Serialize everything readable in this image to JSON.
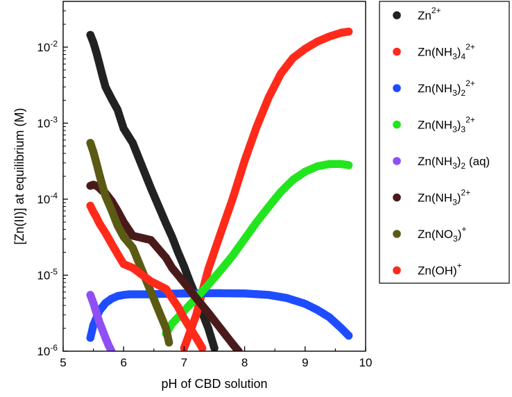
{
  "chart_data": {
    "type": "scatter",
    "title": "",
    "xlabel": "pH of CBD solution",
    "ylabel": "[Zn(II)] at equilibrium (M)",
    "xlim": [
      5,
      10
    ],
    "ylim": [
      1e-06,
      0.04
    ],
    "yscale": "log",
    "x_ticks": [
      "5",
      "6",
      "7",
      "8",
      "9",
      "10"
    ],
    "y_ticks": [
      "10-6",
      "10-5",
      "10-4",
      "10-3",
      "10-2"
    ],
    "legend_position": "right",
    "series": [
      {
        "name": "Zn2+",
        "label_base": "Zn",
        "label_sup": "2+",
        "color": "#222222",
        "points": [
          [
            5.45,
            0.0145
          ],
          [
            5.5,
            0.0115
          ],
          [
            5.55,
            0.0085
          ],
          [
            5.6,
            0.006
          ],
          [
            5.65,
            0.0042
          ],
          [
            5.7,
            0.003
          ],
          [
            5.8,
            0.0021
          ],
          [
            5.9,
            0.0015
          ],
          [
            6.0,
            0.00085
          ],
          [
            6.15,
            0.00055
          ],
          [
            6.45,
            0.00014
          ],
          [
            6.7,
            4.8e-05
          ],
          [
            6.8,
            3.2e-05
          ],
          [
            6.9,
            2e-05
          ],
          [
            7.0,
            1.3e-05
          ],
          [
            7.1,
            8e-06
          ],
          [
            7.2,
            5.2e-06
          ],
          [
            7.3,
            3.2e-06
          ],
          [
            7.4,
            2e-06
          ],
          [
            7.5,
            1.1e-06
          ]
        ]
      },
      {
        "name": "Zn(NH3)4 2+",
        "label_base": "Zn(NH",
        "label_sub": "3",
        "label_mid": ")",
        "label_sub2": "4",
        "label_sup": "2+",
        "color": "#ff2a1a",
        "points": [
          [
            7.0,
            1.1e-06
          ],
          [
            7.2,
            3e-06
          ],
          [
            7.4,
            1.2e-05
          ],
          [
            7.6,
            3.5e-05
          ],
          [
            7.8,
            0.0001
          ],
          [
            8.0,
            0.00032
          ],
          [
            8.2,
            0.0009
          ],
          [
            8.4,
            0.0022
          ],
          [
            8.6,
            0.0045
          ],
          [
            8.8,
            0.0072
          ],
          [
            9.0,
            0.0095
          ],
          [
            9.2,
            0.0118
          ],
          [
            9.4,
            0.0138
          ],
          [
            9.6,
            0.0155
          ],
          [
            9.72,
            0.016
          ]
        ]
      },
      {
        "name": "Zn(NH3)2 2+",
        "label_base": "Zn(NH",
        "label_sub": "3",
        "label_mid": ")",
        "label_sub2": "2",
        "label_sup": "2+",
        "color": "#1e4cff",
        "points": [
          [
            5.45,
            1.5e-06
          ],
          [
            5.5,
            2.2e-06
          ],
          [
            5.6,
            3.4e-06
          ],
          [
            5.7,
            4.3e-06
          ],
          [
            5.8,
            4.9e-06
          ],
          [
            5.9,
            5.3e-06
          ],
          [
            6.0,
            5.5e-06
          ],
          [
            6.1,
            5.6e-06
          ],
          [
            6.45,
            5.6e-06
          ],
          [
            6.7,
            5.7e-06
          ],
          [
            7.0,
            5.75e-06
          ],
          [
            7.5,
            5.8e-06
          ],
          [
            8.0,
            5.75e-06
          ],
          [
            8.4,
            5.5e-06
          ],
          [
            8.7,
            5e-06
          ],
          [
            9.0,
            4.2e-06
          ],
          [
            9.2,
            3.5e-06
          ],
          [
            9.4,
            2.8e-06
          ],
          [
            9.6,
            2e-06
          ],
          [
            9.72,
            1.6e-06
          ]
        ]
      },
      {
        "name": "Zn(NH3)3 2+",
        "label_base": "Zn(NH",
        "label_sub": "3",
        "label_mid": ")",
        "label_sub2": "3",
        "label_sup": "2+",
        "color": "#22e51e",
        "points": [
          [
            6.7,
            1.7e-06
          ],
          [
            6.8,
            2.3e-06
          ],
          [
            7.0,
            3.4e-06
          ],
          [
            7.2,
            5e-06
          ],
          [
            7.4,
            7.5e-06
          ],
          [
            7.6,
            1.15e-05
          ],
          [
            7.8,
            1.8e-05
          ],
          [
            8.0,
            3e-05
          ],
          [
            8.2,
            5e-05
          ],
          [
            8.4,
            8e-05
          ],
          [
            8.6,
            0.000125
          ],
          [
            8.8,
            0.00018
          ],
          [
            9.0,
            0.00023
          ],
          [
            9.2,
            0.00027
          ],
          [
            9.4,
            0.00029
          ],
          [
            9.6,
            0.00029
          ],
          [
            9.72,
            0.00028
          ]
        ]
      },
      {
        "name": "Zn(NH3)2 (aq)",
        "label_base": "Zn(NH",
        "label_sub": "3",
        "label_mid": ")",
        "label_sub2": "2",
        "label_tail": " (aq)",
        "color": "#8f4ff5",
        "points": [
          [
            5.45,
            5.5e-06
          ],
          [
            5.5,
            4.3e-06
          ],
          [
            5.55,
            3.2e-06
          ],
          [
            5.6,
            2.4e-06
          ],
          [
            5.65,
            1.9e-06
          ],
          [
            5.7,
            1.5e-06
          ],
          [
            5.75,
            1.2e-06
          ],
          [
            5.8,
            1e-06
          ]
        ]
      },
      {
        "name": "Zn(NH3)2+",
        "label_base": "Zn(NH",
        "label_sub": "3",
        "label_mid": ")",
        "label_sup": "2+",
        "color": "#4a1a1a",
        "points": [
          [
            5.45,
            0.00015
          ],
          [
            5.5,
            0.000155
          ],
          [
            5.55,
            0.00015
          ],
          [
            5.6,
            0.00014
          ],
          [
            5.65,
            0.000128
          ],
          [
            5.7,
            0.00012
          ],
          [
            5.8,
            9.5e-05
          ],
          [
            5.9,
            7e-05
          ],
          [
            6.0,
            5e-05
          ],
          [
            6.15,
            3.3e-05
          ],
          [
            6.45,
            2.9e-05
          ],
          [
            6.7,
            1.7e-05
          ],
          [
            6.8,
            1.25e-05
          ],
          [
            7.0,
            8e-06
          ],
          [
            7.2,
            5e-06
          ],
          [
            7.4,
            3.2e-06
          ],
          [
            7.6,
            2e-06
          ],
          [
            7.8,
            1.25e-06
          ],
          [
            7.9,
            1e-06
          ]
        ]
      },
      {
        "name": "Zn(NO3)+",
        "label_base": "Zn(NO",
        "label_sub": "3",
        "label_mid": ")",
        "label_sup": "+",
        "color": "#5a5a14",
        "points": [
          [
            5.45,
            0.00055
          ],
          [
            5.5,
            0.00042
          ],
          [
            5.55,
            0.0003
          ],
          [
            5.6,
            0.00021
          ],
          [
            5.65,
            0.00015
          ],
          [
            5.7,
            0.00011
          ],
          [
            5.8,
            7.2e-05
          ],
          [
            5.9,
            4.5e-05
          ],
          [
            6.0,
            3.2e-05
          ],
          [
            6.15,
            2.3e-05
          ],
          [
            6.7,
            2e-06
          ],
          [
            6.75,
            1.3e-06
          ]
        ]
      },
      {
        "name": "Zn(OH)+",
        "label_base": "Zn(OH)",
        "label_sup": "+",
        "color": "#ff2a1a",
        "points": [
          [
            5.45,
            8.2e-05
          ],
          [
            5.5,
            6.8e-05
          ],
          [
            5.55,
            5.8e-05
          ],
          [
            5.6,
            4.8e-05
          ],
          [
            5.7,
            3.6e-05
          ],
          [
            5.8,
            2.6e-05
          ],
          [
            5.9,
            1.9e-05
          ],
          [
            6.0,
            1.4e-05
          ],
          [
            6.15,
            1.25e-05
          ],
          [
            6.45,
            8.3e-06
          ],
          [
            6.7,
            6.6e-06
          ],
          [
            6.8,
            5e-06
          ],
          [
            6.9,
            3.8e-06
          ],
          [
            7.0,
            2.7e-06
          ],
          [
            7.1,
            2e-06
          ],
          [
            7.2,
            1.5e-06
          ],
          [
            7.3,
            1.1e-06
          ]
        ]
      }
    ]
  }
}
